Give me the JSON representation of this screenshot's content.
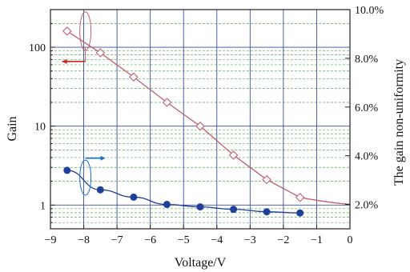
{
  "chart_data": {
    "type": "line",
    "xlabel": "Voltage/V",
    "ylabel": "Gain",
    "y2label": "The gain non-uniformity",
    "xlim": [
      -9,
      0
    ],
    "ylim": [
      0.5,
      300
    ],
    "yscale": "log",
    "y2lim": [
      1.0,
      10.0
    ],
    "xticks": [
      "−9",
      "−8",
      "−7",
      "−6",
      "−5",
      "−4",
      "−3",
      "−2",
      "−1",
      "0"
    ],
    "yticks": [
      "1",
      "10",
      "100"
    ],
    "y2ticks": [
      "2.0%",
      "4.0%",
      "6.0%",
      "8.0%",
      "10.0%"
    ],
    "grid": true,
    "series": [
      {
        "axis": "left",
        "marker": "open-diamond",
        "color": "#c06070",
        "x": [
          -8.5,
          -7.5,
          -6.5,
          -5.5,
          -4.5,
          -3.5,
          -2.5,
          -1.5
        ],
        "y": [
          160,
          85,
          42,
          20,
          10,
          4.3,
          2.1,
          1.25
        ]
      },
      {
        "axis": "right",
        "marker": "filled-circle",
        "color": "#1f3f99",
        "x": [
          -8.5,
          -7.5,
          -6.5,
          -5.5,
          -4.5,
          -3.5,
          -2.5,
          -1.5
        ],
        "y": [
          3.4,
          2.6,
          2.3,
          2.0,
          1.9,
          1.8,
          1.7,
          1.65
        ]
      }
    ],
    "colors": {
      "grid_major": "#3a4fa0",
      "grid_minor": "#5fa85f",
      "left_series": "#c06070",
      "right_series": "#1f3f99",
      "arrow_left": "#d02020",
      "arrow_right": "#1a6fd0"
    }
  }
}
